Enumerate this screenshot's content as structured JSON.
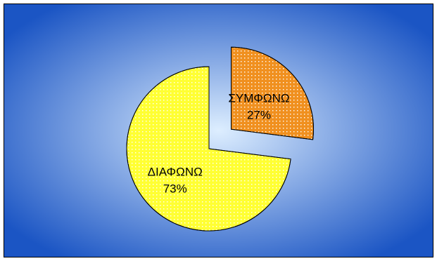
{
  "chart_data": {
    "type": "pie",
    "slices": [
      {
        "label": "ΣΥΜΦΩΝΩ",
        "value": 27,
        "value_label": "27%",
        "color": "#f0901f",
        "exploded": true
      },
      {
        "label": "ΔΙΑΦΩΝΩ",
        "value": 73,
        "value_label": "73%",
        "color": "#ffff33",
        "exploded": false
      }
    ],
    "background": {
      "center": "#ddeeff",
      "edge": "#1b55c4"
    },
    "legend": "none",
    "start_angle": "12 o'clock",
    "direction": "clockwise"
  }
}
